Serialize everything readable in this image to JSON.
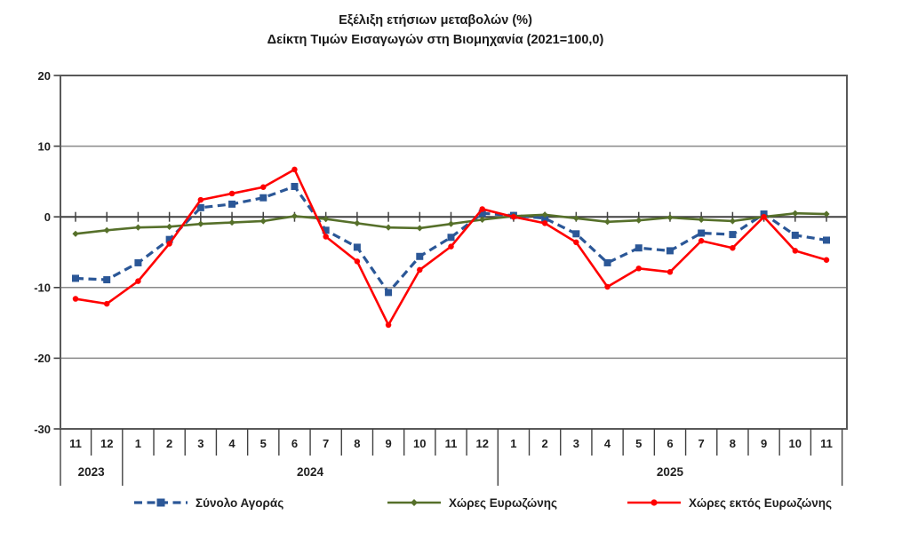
{
  "title": {
    "line1": "Εξέλιξη ετήσιων μεταβολών (%)",
    "line2": "Δείκτη Τιμών Εισαγωγών στη Βιομηχανία (2021=100,0)"
  },
  "chart_data": {
    "type": "line",
    "x_labels": [
      "11",
      "12",
      "1",
      "2",
      "3",
      "4",
      "5",
      "6",
      "7",
      "8",
      "9",
      "10",
      "11",
      "12",
      "1",
      "2",
      "3",
      "4",
      "5",
      "6",
      "7",
      "8",
      "9",
      "10",
      "11"
    ],
    "year_groups": [
      {
        "label": "2023",
        "count": 2
      },
      {
        "label": "2024",
        "count": 12
      },
      {
        "label": "2025",
        "count": 11
      }
    ],
    "ylim": [
      -30,
      20
    ],
    "yticks": [
      20,
      10,
      0,
      -10,
      -20,
      -30
    ],
    "grid": "horizontal-gridlines",
    "legend_position": "bottom",
    "axis_color": "#404040",
    "grid_color": "#898989",
    "series": [
      {
        "name": "Σύνολο Αγοράς",
        "color": "#2B5797",
        "line_style": "dashed",
        "marker": "square",
        "values": [
          -8.7,
          -8.9,
          -6.5,
          -3.2,
          1.3,
          1.8,
          2.7,
          4.3,
          -1.9,
          -4.3,
          -10.7,
          -5.6,
          -2.9,
          0.5,
          0.2,
          -0.2,
          -2.4,
          -6.5,
          -4.4,
          -4.8,
          -2.3,
          -2.5,
          0.4,
          -2.6,
          -3.3
        ]
      },
      {
        "name": "Χώρες Ευρωζώνης",
        "color": "#56702A",
        "line_style": "solid",
        "marker": "diamond",
        "values": [
          -2.4,
          -1.9,
          -1.5,
          -1.4,
          -1.0,
          -0.8,
          -0.6,
          0.1,
          -0.3,
          -0.9,
          -1.5,
          -1.6,
          -1.0,
          -0.4,
          0.1,
          0.3,
          -0.2,
          -0.7,
          -0.5,
          -0.1,
          -0.4,
          -0.6,
          0.0,
          0.5,
          0.4
        ]
      },
      {
        "name": "Χώρες εκτός Ευρωζώνης",
        "color": "#FF0000",
        "line_style": "solid",
        "marker": "circle",
        "values": [
          -11.6,
          -12.3,
          -9.1,
          -3.8,
          2.4,
          3.3,
          4.2,
          6.7,
          -2.8,
          -6.3,
          -15.3,
          -7.5,
          -4.2,
          1.1,
          0.0,
          -0.9,
          -3.6,
          -9.9,
          -7.3,
          -7.8,
          -3.4,
          -4.4,
          0.0,
          -4.8,
          -6.1
        ]
      }
    ]
  }
}
